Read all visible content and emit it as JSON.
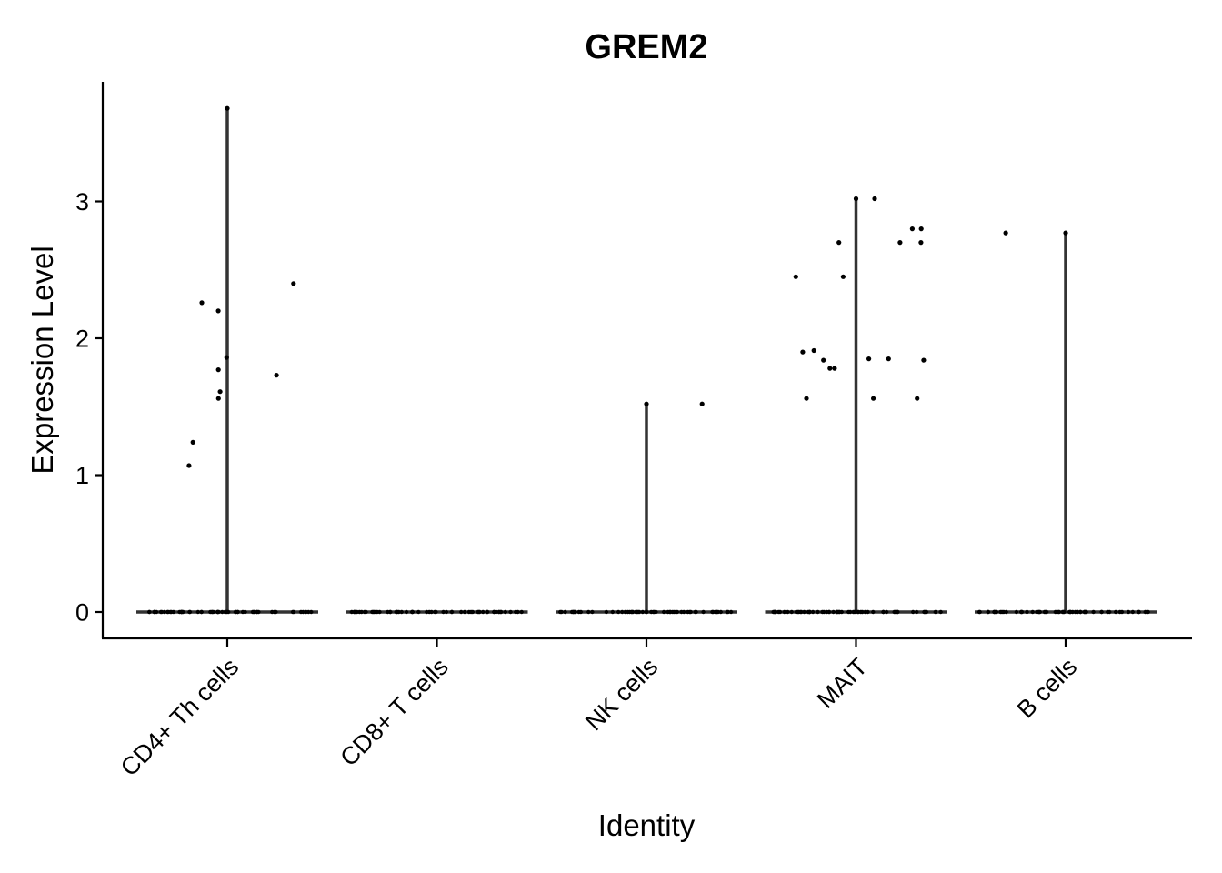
{
  "chart_data": {
    "type": "violin",
    "title": "GREM2",
    "xlabel": "Identity",
    "ylabel": "Expression Level",
    "categories": [
      "CD4+ Th cells",
      "CD8+ T cells",
      "NK cells",
      "MAIT",
      "B cells"
    ],
    "yticks": [
      0,
      1,
      2,
      3
    ],
    "ytick_labels": [
      "0",
      "1",
      "2",
      "3"
    ],
    "ylim": [
      -0.19,
      3.88
    ],
    "grid": false,
    "series": [
      {
        "category": "CD4+ Th cells",
        "max": 3.68,
        "nonzero_points": [
          3.68,
          2.4,
          2.26,
          2.2,
          1.86,
          1.77,
          1.73,
          1.61,
          1.56,
          1.24,
          1.07
        ]
      },
      {
        "category": "CD8+ T cells",
        "max": 0,
        "nonzero_points": []
      },
      {
        "category": "NK cells",
        "max": 1.52,
        "nonzero_points": [
          1.52,
          1.52
        ]
      },
      {
        "category": "MAIT",
        "max": 3.02,
        "nonzero_points": [
          3.02,
          3.02,
          2.8,
          2.8,
          2.7,
          2.7,
          2.7,
          2.45,
          2.45,
          1.91,
          1.9,
          1.85,
          1.85,
          1.84,
          1.84,
          1.78,
          1.78,
          1.56,
          1.56,
          1.56
        ]
      },
      {
        "category": "B cells",
        "max": 2.77,
        "nonzero_points": [
          2.77,
          2.77
        ]
      }
    ]
  }
}
